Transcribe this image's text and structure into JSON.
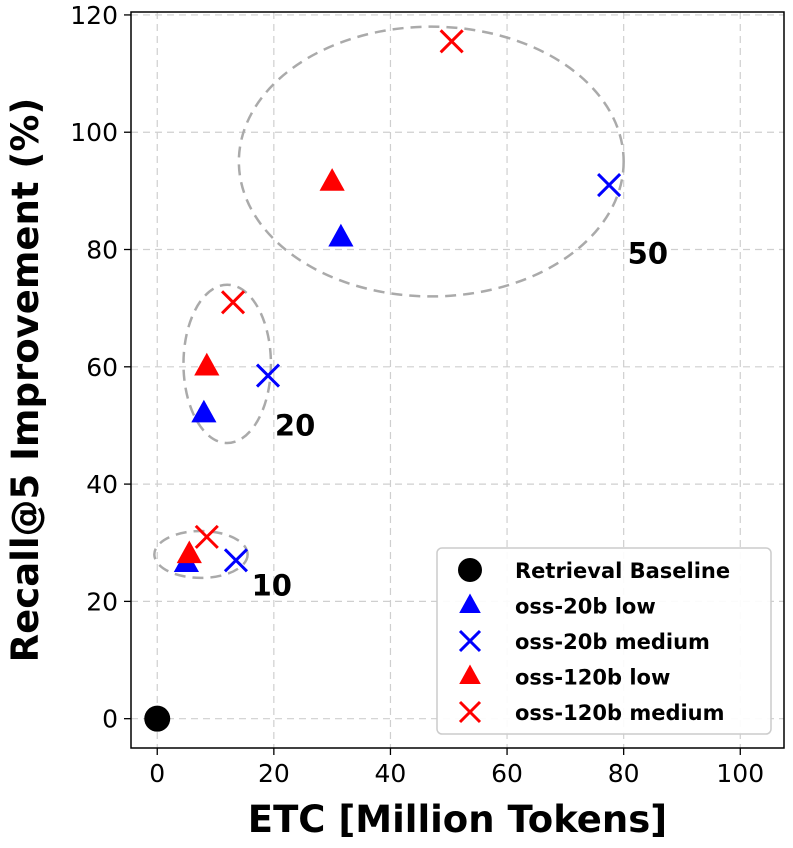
{
  "chart_data": {
    "type": "scatter",
    "xlabel": "ETC [Million Tokens]",
    "ylabel": "Recall@5 Improvement (%)",
    "xlim": [
      -4.5,
      107.5
    ],
    "ylim": [
      -5,
      120.5
    ],
    "xticks": [
      0,
      20,
      40,
      60,
      80,
      100
    ],
    "yticks": [
      0,
      20,
      40,
      60,
      80,
      100,
      120
    ],
    "grid": true,
    "legend_position": "bottom-right",
    "series": [
      {
        "name": "Retrieval Baseline",
        "marker": "circle",
        "color": "#000000",
        "points": [
          {
            "x": 0,
            "y": 0
          }
        ]
      },
      {
        "name": "oss-20b low",
        "marker": "triangle",
        "color": "#0000ff",
        "points": [
          {
            "x": 5,
            "y": 26.5
          },
          {
            "x": 8,
            "y": 52
          },
          {
            "x": 31.5,
            "y": 82
          }
        ]
      },
      {
        "name": "oss-20b medium",
        "marker": "x",
        "color": "#0000ff",
        "points": [
          {
            "x": 13.5,
            "y": 27
          },
          {
            "x": 19,
            "y": 58.5
          },
          {
            "x": 77.5,
            "y": 91
          }
        ]
      },
      {
        "name": "oss-120b low",
        "marker": "triangle",
        "color": "#ff0000",
        "points": [
          {
            "x": 5.5,
            "y": 28
          },
          {
            "x": 8.5,
            "y": 60
          },
          {
            "x": 30,
            "y": 91.5
          }
        ]
      },
      {
        "name": "oss-120b medium",
        "marker": "x",
        "color": "#ff0000",
        "points": [
          {
            "x": 8.5,
            "y": 31
          },
          {
            "x": 13,
            "y": 71
          },
          {
            "x": 50.5,
            "y": 115.5
          }
        ]
      }
    ],
    "groups": [
      {
        "label": "10",
        "center": [
          7.5,
          28
        ],
        "radius": [
          8,
          4
        ]
      },
      {
        "label": "20",
        "center": [
          12,
          60.5
        ],
        "radius": [
          7.5,
          13.5
        ]
      },
      {
        "label": "50",
        "center": [
          47,
          95
        ],
        "radius": [
          33,
          23
        ]
      }
    ]
  }
}
